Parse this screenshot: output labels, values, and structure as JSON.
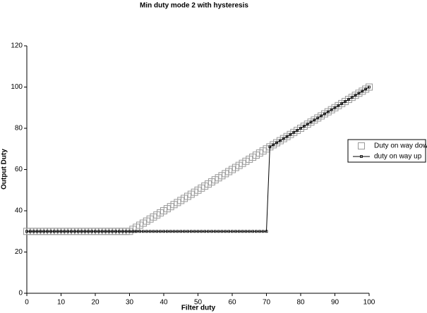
{
  "chart_data": {
    "type": "line",
    "title": "Min duty mode 2 with hysteresis",
    "x_label": "Filter duty",
    "y_label": "Output Duty",
    "x": [
      0,
      1,
      2,
      3,
      4,
      5,
      6,
      7,
      8,
      9,
      10,
      11,
      12,
      13,
      14,
      15,
      16,
      17,
      18,
      19,
      20,
      21,
      22,
      23,
      24,
      25,
      26,
      27,
      28,
      29,
      30,
      31,
      32,
      33,
      34,
      35,
      36,
      37,
      38,
      39,
      40,
      41,
      42,
      43,
      44,
      45,
      46,
      47,
      48,
      49,
      50,
      51,
      52,
      53,
      54,
      55,
      56,
      57,
      58,
      59,
      60,
      61,
      62,
      63,
      64,
      65,
      66,
      67,
      68,
      69,
      70,
      71,
      72,
      73,
      74,
      75,
      76,
      77,
      78,
      79,
      80,
      81,
      82,
      83,
      84,
      85,
      86,
      87,
      88,
      89,
      90,
      91,
      92,
      93,
      94,
      95,
      96,
      97,
      98,
      99,
      100
    ],
    "series": [
      {
        "name": "Duty on way down",
        "color": "#999999",
        "marker": "square-open",
        "line": false,
        "values": [
          30,
          30,
          30,
          30,
          30,
          30,
          30,
          30,
          30,
          30,
          30,
          30,
          30,
          30,
          30,
          30,
          30,
          30,
          30,
          30,
          30,
          30,
          30,
          30,
          30,
          30,
          30,
          30,
          30,
          30,
          30,
          31,
          32,
          33,
          34,
          35,
          36,
          37,
          38,
          39,
          40,
          41,
          42,
          43,
          44,
          45,
          46,
          47,
          48,
          49,
          50,
          51,
          52,
          53,
          54,
          55,
          56,
          57,
          58,
          59,
          60,
          61,
          62,
          63,
          64,
          65,
          66,
          67,
          68,
          69,
          70,
          71,
          72,
          73,
          74,
          75,
          76,
          77,
          78,
          79,
          80,
          81,
          82,
          83,
          84,
          85,
          86,
          87,
          88,
          89,
          90,
          91,
          92,
          93,
          94,
          95,
          96,
          97,
          98,
          99,
          100
        ]
      },
      {
        "name": "duty on way up",
        "color": "#000000",
        "marker": "square-small",
        "line": true,
        "values": [
          30,
          30,
          30,
          30,
          30,
          30,
          30,
          30,
          30,
          30,
          30,
          30,
          30,
          30,
          30,
          30,
          30,
          30,
          30,
          30,
          30,
          30,
          30,
          30,
          30,
          30,
          30,
          30,
          30,
          30,
          30,
          30,
          30,
          30,
          30,
          30,
          30,
          30,
          30,
          30,
          30,
          30,
          30,
          30,
          30,
          30,
          30,
          30,
          30,
          30,
          30,
          30,
          30,
          30,
          30,
          30,
          30,
          30,
          30,
          30,
          30,
          30,
          30,
          30,
          30,
          30,
          30,
          30,
          30,
          30,
          30,
          71,
          72,
          73,
          74,
          75,
          76,
          77,
          78,
          79,
          80,
          81,
          82,
          83,
          84,
          85,
          86,
          87,
          88,
          89,
          90,
          91,
          92,
          93,
          94,
          95,
          96,
          97,
          98,
          99,
          100
        ]
      }
    ],
    "xlim": [
      0,
      100
    ],
    "xticks": [
      0,
      10,
      20,
      30,
      40,
      50,
      60,
      70,
      80,
      90,
      100
    ],
    "ylim": [
      0,
      120
    ],
    "yticks": [
      0,
      20,
      40,
      60,
      80,
      100,
      120
    ],
    "grid": false,
    "legend": "right"
  }
}
